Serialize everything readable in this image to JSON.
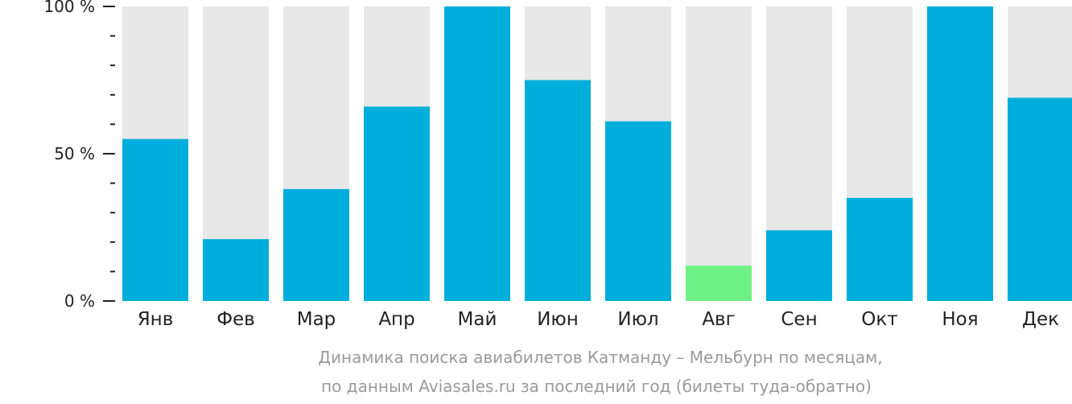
{
  "chart_data": {
    "type": "bar",
    "categories": [
      "Янв",
      "Фев",
      "Мар",
      "Апр",
      "Май",
      "Июн",
      "Июл",
      "Авг",
      "Сен",
      "Окт",
      "Ноя",
      "Дек"
    ],
    "values": [
      55,
      21,
      38,
      66,
      100,
      75,
      61,
      12,
      24,
      35,
      100,
      69
    ],
    "highlight_index": 7,
    "ylim": [
      0,
      100
    ],
    "yticks": [
      {
        "value": 0,
        "label": "0 %"
      },
      {
        "value": 50,
        "label": "50 %"
      },
      {
        "value": 100,
        "label": "100 %"
      }
    ],
    "minor_ticks": [
      10,
      20,
      30,
      40,
      60,
      70,
      80,
      90
    ],
    "colors": {
      "bar": "#00aedc",
      "highlight": "#6ff285",
      "track": "#e8e8e8"
    },
    "caption_lines": [
      "Динамика поиска авиабилетов Катманду – Мельбурн по месяцам,",
      "по данным Aviasales.ru за последний год (билеты туда-обратно)"
    ]
  }
}
